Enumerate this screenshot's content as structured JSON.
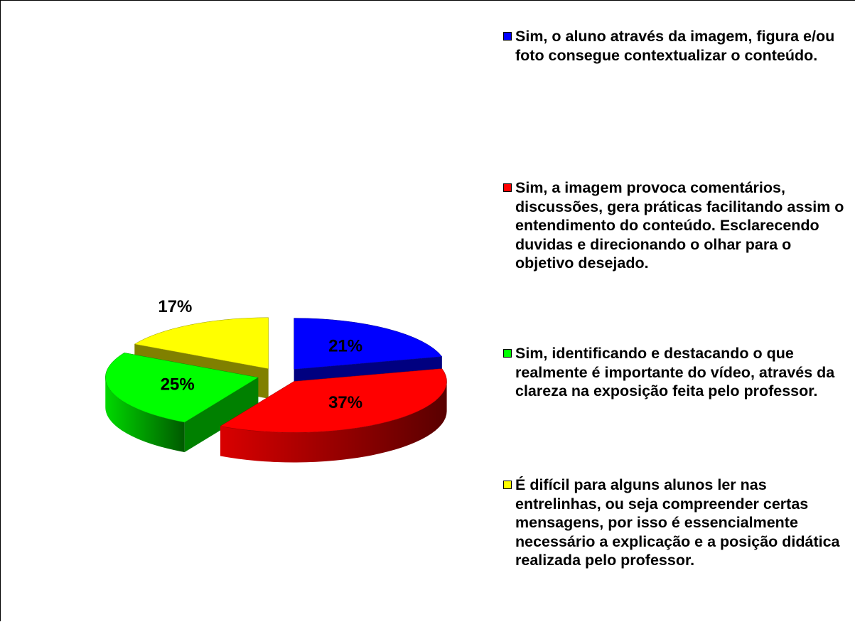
{
  "chart_data": {
    "type": "pie",
    "categories": [
      "Sim, o aluno através da imagem, figura e/ou foto consegue contextualizar o conteúdo.",
      "Sim, a imagem provoca comentários, discussões, gera práticas facilitando assim o entendimento do conteúdo. Esclarecendo duvidas e direcionando o olhar para o objetivo desejado.",
      "Sim, identificando e destacando o que realmente é importante do vídeo, através da clareza na exposição feita pelo professor.",
      "É difícil para alguns alunos ler nas entrelinhas, ou seja compreender certas mensagens, por isso é essencialmente necessário a explicação e a posição didática realizada pelo professor."
    ],
    "values": [
      21,
      37,
      25,
      17
    ],
    "value_labels": [
      "21%",
      "37%",
      "25%",
      "17%"
    ],
    "colors": [
      "#0000ff",
      "#ff0000",
      "#00ff00",
      "#ffff00"
    ],
    "legend": "right"
  }
}
